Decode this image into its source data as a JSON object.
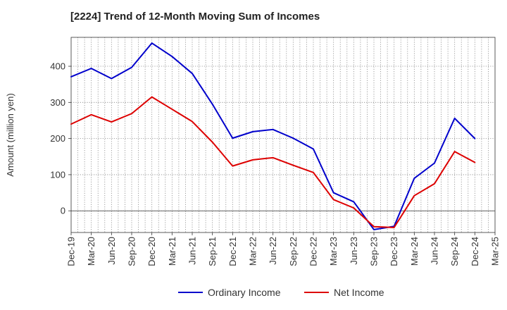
{
  "chart_data": {
    "type": "line",
    "title": "[2224]  Trend of 12-Month Moving Sum of Incomes",
    "xlabel": "",
    "ylabel": "Amount (million yen)",
    "ylim": [
      -60,
      480
    ],
    "yticks": [
      0,
      100,
      200,
      300,
      400
    ],
    "grid": true,
    "legend_position": "bottom",
    "categories": [
      "Dec-19",
      "Mar-20",
      "Jun-20",
      "Sep-20",
      "Dec-20",
      "Mar-21",
      "Jun-21",
      "Sep-21",
      "Dec-21",
      "Mar-22",
      "Jun-22",
      "Sep-22",
      "Dec-22",
      "Mar-23",
      "Jun-23",
      "Sep-23",
      "Dec-23",
      "Mar-24",
      "Jun-24",
      "Sep-24",
      "Dec-24",
      "Mar-25"
    ],
    "series": [
      {
        "name": "Ordinary Income",
        "color": "#0000cc",
        "values": [
          371,
          394,
          366,
          397,
          464,
          427,
          380,
          295,
          201,
          219,
          225,
          201,
          171,
          50,
          25,
          -52,
          -43,
          90,
          132,
          256,
          200,
          null
        ]
      },
      {
        "name": "Net Income",
        "color": "#dd0000",
        "values": [
          240,
          266,
          246,
          269,
          315,
          281,
          247,
          190,
          124,
          141,
          147,
          126,
          106,
          31,
          8,
          -44,
          -46,
          42,
          75,
          164,
          134,
          null
        ]
      }
    ]
  }
}
